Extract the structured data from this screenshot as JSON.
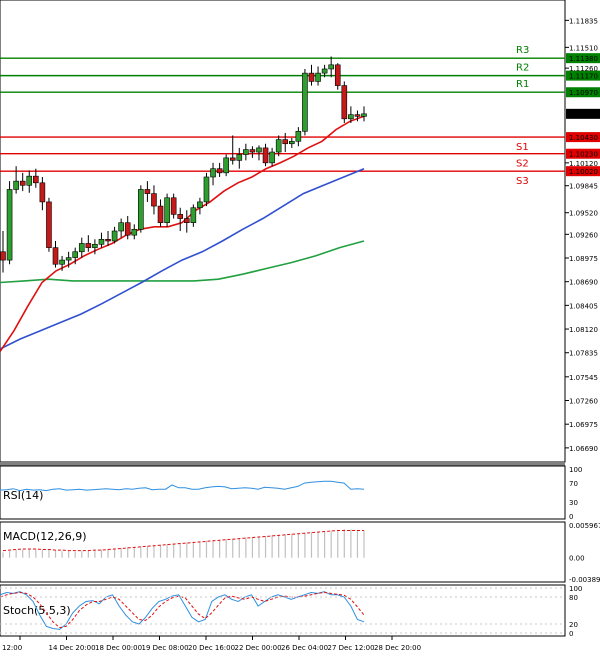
{
  "chart_data": {
    "type": "candlestick",
    "ylim": [
      1.0652,
      1.1208
    ],
    "price_ticks": [
      "1.11835",
      "1.11510",
      "1.11260",
      "1.10120",
      "1.09845",
      "1.09520",
      "1.09260",
      "1.08975",
      "1.08690",
      "1.08405",
      "1.08120",
      "1.07835",
      "1.07545",
      "1.07260",
      "1.06975",
      "1.06690"
    ],
    "current_price": 1.1071,
    "current_price_label": "1.10710",
    "x_labels": [
      "12:00",
      "14 Dec 20:00",
      "18 Dec 00:00",
      "19 Dec 08:00",
      "20 Dec 16:00",
      "22 Dec 00:00",
      "26 Dec 04:00",
      "27 Dec 12:00",
      "28 Dec 20:00"
    ],
    "levels": [
      {
        "name": "R3",
        "price": 1.1138,
        "label": "1.11380",
        "color": "#008000"
      },
      {
        "name": "R2",
        "price": 1.1117,
        "label": "1.11170",
        "color": "#008000"
      },
      {
        "name": "R1",
        "price": 1.1097,
        "label": "1.10970",
        "color": "#008000"
      },
      {
        "name": "S1",
        "price": 1.1043,
        "label": "1.10430",
        "color": "#e00000"
      },
      {
        "name": "S2",
        "price": 1.1023,
        "label": "1.10230",
        "color": "#e00000"
      },
      {
        "name": "S3",
        "price": 1.1002,
        "label": "1.10020",
        "color": "#e00000"
      }
    ],
    "candles": [
      [
        1.0905,
        1.093,
        1.088,
        1.0895
      ],
      [
        1.0895,
        1.099,
        1.089,
        1.098
      ],
      [
        1.098,
        1.1008,
        1.0975,
        1.099
      ],
      [
        1.099,
        1.1,
        1.0978,
        1.0985
      ],
      [
        1.0985,
        1.1003,
        1.0976,
        1.0996
      ],
      [
        1.0996,
        1.1005,
        1.0982,
        1.0988
      ],
      [
        1.0988,
        1.0995,
        1.0955,
        1.0965
      ],
      [
        1.0965,
        1.097,
        1.0905,
        1.091
      ],
      [
        1.091,
        1.0918,
        1.0886,
        1.089
      ],
      [
        1.089,
        1.09,
        1.0882,
        1.0895
      ],
      [
        1.0895,
        1.0905,
        1.0886,
        1.0898
      ],
      [
        1.0898,
        1.091,
        1.089,
        1.0905
      ],
      [
        1.0905,
        1.0922,
        1.0898,
        1.0915
      ],
      [
        1.0915,
        1.0925,
        1.0905,
        1.091
      ],
      [
        1.091,
        1.092,
        1.0902,
        1.0914
      ],
      [
        1.0914,
        1.0928,
        1.091,
        1.092
      ],
      [
        1.092,
        1.093,
        1.0912,
        1.0918
      ],
      [
        1.0918,
        1.0935,
        1.0915,
        1.093
      ],
      [
        1.093,
        1.0945,
        1.0922,
        1.094
      ],
      [
        1.094,
        1.0948,
        1.092,
        1.0925
      ],
      [
        1.0925,
        1.0938,
        1.092,
        1.0932
      ],
      [
        1.0932,
        1.0985,
        1.0928,
        1.098
      ],
      [
        1.098,
        1.099,
        1.0965,
        1.0975
      ],
      [
        1.0975,
        1.0985,
        1.095,
        1.096
      ],
      [
        1.096,
        1.0968,
        1.0935,
        1.094
      ],
      [
        1.094,
        1.0975,
        1.0935,
        1.097
      ],
      [
        1.097,
        1.0975,
        1.0945,
        1.095
      ],
      [
        1.095,
        1.0958,
        1.093,
        1.0945
      ],
      [
        1.0945,
        1.0955,
        1.0928,
        1.094
      ],
      [
        1.094,
        1.0962,
        1.0935,
        1.0958
      ],
      [
        1.0958,
        1.097,
        1.095,
        1.0965
      ],
      [
        1.0965,
        1.1,
        1.096,
        1.0995
      ],
      [
        1.0995,
        1.1012,
        1.0985,
        1.1005
      ],
      [
        1.1005,
        1.1012,
        1.0995,
        1.1
      ],
      [
        1.1,
        1.1022,
        1.0996,
        1.1018
      ],
      [
        1.1018,
        1.1045,
        1.101,
        1.1015
      ],
      [
        1.1015,
        1.103,
        1.1005,
        1.1022
      ],
      [
        1.1022,
        1.1035,
        1.1015,
        1.1028
      ],
      [
        1.1028,
        1.1032,
        1.1018,
        1.1025
      ],
      [
        1.1025,
        1.1033,
        1.1015,
        1.103
      ],
      [
        1.103,
        1.1035,
        1.1008,
        1.1012
      ],
      [
        1.1012,
        1.103,
        1.1008,
        1.1025
      ],
      [
        1.1025,
        1.1045,
        1.102,
        1.104
      ],
      [
        1.104,
        1.1048,
        1.1025,
        1.1035
      ],
      [
        1.1035,
        1.1042,
        1.103,
        1.1038
      ],
      [
        1.1038,
        1.1055,
        1.1032,
        1.105
      ],
      [
        1.105,
        1.1125,
        1.1045,
        1.112
      ],
      [
        1.112,
        1.113,
        1.1105,
        1.111
      ],
      [
        1.111,
        1.1128,
        1.1105,
        1.112
      ],
      [
        1.112,
        1.113,
        1.1115,
        1.1125
      ],
      [
        1.1125,
        1.114,
        1.1115,
        1.113
      ],
      [
        1.113,
        1.1132,
        1.11,
        1.1105
      ],
      [
        1.1105,
        1.111,
        1.106,
        1.1065
      ],
      [
        1.1065,
        1.108,
        1.106,
        1.107
      ],
      [
        1.107,
        1.1075,
        1.1062,
        1.1068
      ],
      [
        1.1068,
        1.108,
        1.1062,
        1.1071
      ]
    ],
    "ma_fast": [
      1.0785,
      1.081,
      1.084,
      1.0868,
      1.0882,
      1.089,
      1.09,
      1.0908,
      1.0915,
      1.0925,
      1.0932,
      1.0935,
      1.0935,
      1.094,
      1.0955,
      1.0965,
      1.0978,
      1.0988,
      1.0995,
      1.1005,
      1.1012,
      1.102,
      1.103,
      1.1038,
      1.1052,
      1.1062,
      1.1068
    ],
    "ma_mid": [
      1.0788,
      1.08,
      1.081,
      1.082,
      1.083,
      1.0842,
      1.0855,
      1.0868,
      1.0882,
      1.0895,
      1.0905,
      1.0918,
      1.0932,
      1.0945,
      1.096,
      1.0975,
      1.0985,
      1.0995,
      1.1005
    ],
    "ma_slow": [
      1.0868,
      1.087,
      1.0872,
      1.087,
      1.087,
      1.087,
      1.087,
      1.087,
      1.087,
      1.0872,
      1.0878,
      1.0885,
      1.0892,
      1.09,
      1.091,
      1.0918
    ],
    "rsi": {
      "title": "RSI(14)",
      "ticks": [
        "100",
        "70",
        "30",
        "0"
      ],
      "values": [
        55,
        56,
        58,
        54,
        57,
        55,
        56,
        54,
        57,
        58,
        55,
        56,
        57,
        55,
        56,
        57,
        58,
        57,
        56,
        58,
        57,
        59,
        60,
        56,
        57,
        57,
        66,
        60,
        60,
        57,
        57,
        60,
        62,
        63,
        62,
        58,
        59,
        60,
        59,
        57,
        61,
        60,
        59,
        57,
        60,
        63,
        70,
        72,
        73,
        74,
        74,
        72,
        70,
        57,
        58,
        57
      ]
    },
    "macd": {
      "title": "MACD(12,26,9)",
      "ticks": [
        "0.005967",
        "0.00",
        "-0.003896"
      ],
      "hist": [
        0.001,
        0.0012,
        0.0014,
        0.0015,
        0.0016,
        0.0016,
        0.0015,
        0.0014,
        0.0013,
        0.0012,
        0.0012,
        0.0011,
        0.0012,
        0.0013,
        0.0014,
        0.0015,
        0.0016,
        0.0017,
        0.0018,
        0.0019,
        0.002,
        0.0021,
        0.0022,
        0.0023,
        0.0024,
        0.0025,
        0.0026,
        0.0027,
        0.0028,
        0.0029,
        0.003,
        0.0031,
        0.0032,
        0.0033,
        0.0034,
        0.0035,
        0.0036,
        0.0037,
        0.0038,
        0.0039,
        0.004,
        0.0041,
        0.0042,
        0.0043,
        0.0044,
        0.0045,
        0.0046,
        0.0047,
        0.0048,
        0.0049,
        0.005,
        0.0051,
        0.0052,
        0.0052,
        0.0051,
        0.005
      ],
      "signal": [
        0.0013,
        0.0014,
        0.0015,
        0.0016,
        0.0016,
        0.0016,
        0.0015,
        0.0015,
        0.0014,
        0.0014,
        0.0013,
        0.0013,
        0.0013,
        0.0013,
        0.0014,
        0.0014,
        0.0015,
        0.0016,
        0.0017,
        0.0018,
        0.0019,
        0.002,
        0.0021,
        0.0022,
        0.0023,
        0.0024,
        0.0025,
        0.0026,
        0.0027,
        0.0028,
        0.0029,
        0.003,
        0.0031,
        0.0032,
        0.0033,
        0.0034,
        0.0035,
        0.0036,
        0.0037,
        0.0038,
        0.0039,
        0.004,
        0.0041,
        0.0042,
        0.0043,
        0.0044,
        0.0045,
        0.0046,
        0.0047,
        0.0048,
        0.0049,
        0.005,
        0.005,
        0.005,
        0.005,
        0.005
      ]
    },
    "stoch": {
      "title": "Stoch(5,5,3)",
      "ticks": [
        "100",
        "80",
        "20",
        "0"
      ],
      "main": [
        85,
        90,
        88,
        92,
        85,
        70,
        40,
        15,
        10,
        8,
        20,
        45,
        60,
        70,
        72,
        65,
        80,
        85,
        60,
        40,
        25,
        20,
        35,
        55,
        70,
        75,
        82,
        85,
        60,
        35,
        25,
        30,
        70,
        80,
        85,
        75,
        70,
        80,
        85,
        60,
        70,
        80,
        85,
        80,
        75,
        80,
        85,
        90,
        88,
        92,
        85,
        85,
        80,
        60,
        30,
        25
      ],
      "signal": [
        80,
        85,
        88,
        90,
        88,
        80,
        65,
        45,
        25,
        12,
        15,
        30,
        50,
        62,
        70,
        70,
        75,
        80,
        75,
        60,
        45,
        30,
        28,
        40,
        58,
        70,
        78,
        82,
        78,
        60,
        42,
        32,
        45,
        62,
        78,
        82,
        78,
        75,
        80,
        75,
        70,
        75,
        80,
        82,
        80,
        80,
        82,
        85,
        88,
        90,
        88,
        86,
        84,
        75,
        58,
        40
      ]
    }
  }
}
